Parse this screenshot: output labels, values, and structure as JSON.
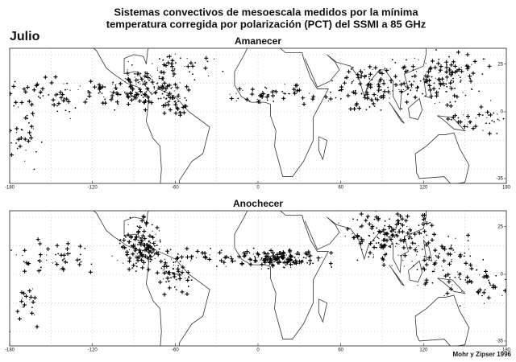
{
  "header": {
    "title_lines": [
      "Sistemas convectivos de mesoescala medidos por la mínima",
      "temperatura corregida por polarización (PCT) del SSMI a 85 GHz"
    ],
    "month": "Julio"
  },
  "panels": [
    {
      "title": "Amanecer",
      "lon_ticks": [
        -180,
        -120,
        -60,
        0,
        60,
        120,
        180
      ],
      "lat_ticks": [
        25,
        0,
        -35
      ]
    },
    {
      "title": "Anochecer",
      "lon_ticks": [
        -180,
        -120,
        -60,
        0,
        60,
        120,
        180
      ],
      "lat_ticks": [
        25,
        0,
        -35
      ]
    }
  ],
  "credit": "Mohr y Zipser 1996"
}
